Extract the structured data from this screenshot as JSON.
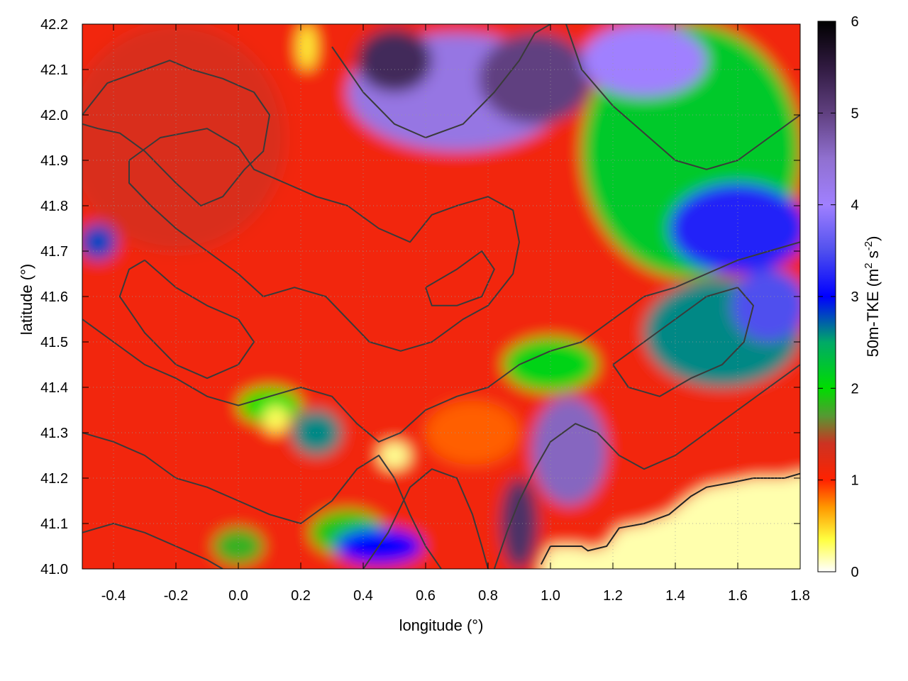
{
  "chart_data": {
    "type": "heatmap",
    "title": "",
    "xlabel": "longitude (°)",
    "ylabel": "latitude (°)",
    "colorbar_label_parts": [
      "50m-TKE (m",
      "2",
      " s",
      "-2",
      ")"
    ],
    "xlim": [
      -0.5,
      1.8
    ],
    "ylim": [
      41.0,
      42.2
    ],
    "x_ticks": [
      -0.4,
      -0.2,
      0.0,
      0.2,
      0.4,
      0.6,
      0.8,
      1.0,
      1.2,
      1.4,
      1.6,
      1.8
    ],
    "x_tick_labels": [
      "-0.4",
      "-0.2",
      "0.0",
      "0.2",
      "0.4",
      "0.6",
      "0.8",
      "1.0",
      "1.2",
      "1.4",
      "1.6",
      "1.8"
    ],
    "y_ticks": [
      41.0,
      41.1,
      41.2,
      41.3,
      41.4,
      41.5,
      41.6,
      41.7,
      41.8,
      41.9,
      42.0,
      42.1,
      42.2
    ],
    "y_tick_labels": [
      "41.0",
      "41.1",
      "41.2",
      "41.3",
      "41.4",
      "41.5",
      "41.6",
      "41.7",
      "41.8",
      "41.9",
      "42.0",
      "42.1",
      "42.2"
    ],
    "colorbar_range": [
      0,
      6
    ],
    "colorbar_ticks": [
      0,
      1,
      2,
      3,
      4,
      5,
      6
    ],
    "colorbar_tick_labels": [
      "0",
      "1",
      "2",
      "3",
      "4",
      "5",
      "6"
    ],
    "colorscale": [
      {
        "value": 0.0,
        "color": "#ffffff"
      },
      {
        "value": 0.35,
        "color": "#ffff40"
      },
      {
        "value": 0.7,
        "color": "#ff9900"
      },
      {
        "value": 1.0,
        "color": "#ff2200"
      },
      {
        "value": 1.4,
        "color": "#cc3322"
      },
      {
        "value": 1.7,
        "color": "#559933"
      },
      {
        "value": 2.0,
        "color": "#00dd00"
      },
      {
        "value": 2.5,
        "color": "#00aa66"
      },
      {
        "value": 3.0,
        "color": "#0000ff"
      },
      {
        "value": 3.5,
        "color": "#5050ee"
      },
      {
        "value": 4.0,
        "color": "#a080ff"
      },
      {
        "value": 4.5,
        "color": "#9070d0"
      },
      {
        "value": 5.0,
        "color": "#604080"
      },
      {
        "value": 5.5,
        "color": "#301a40"
      },
      {
        "value": 6.0,
        "color": "#000000"
      }
    ],
    "regions": [
      {
        "kind": "background",
        "value": 1.1
      },
      {
        "kind": "blob",
        "lon": -0.2,
        "lat": 41.95,
        "rx": 0.35,
        "ry": 0.25,
        "value": 1.3
      },
      {
        "kind": "blob",
        "lon": 0.7,
        "lat": 42.05,
        "rx": 0.35,
        "ry": 0.13,
        "value": 4.3
      },
      {
        "kind": "blob",
        "lon": 0.5,
        "lat": 42.12,
        "rx": 0.12,
        "ry": 0.07,
        "value": 5.3
      },
      {
        "kind": "blob",
        "lon": 0.95,
        "lat": 42.08,
        "rx": 0.18,
        "ry": 0.1,
        "value": 5.0
      },
      {
        "kind": "blob",
        "lon": 1.45,
        "lat": 41.92,
        "rx": 0.35,
        "ry": 0.28,
        "value": 2.2
      },
      {
        "kind": "blob",
        "lon": 1.3,
        "lat": 42.12,
        "rx": 0.2,
        "ry": 0.08,
        "value": 4.0
      },
      {
        "kind": "blob",
        "lon": 1.6,
        "lat": 41.75,
        "rx": 0.22,
        "ry": 0.1,
        "value": 3.2
      },
      {
        "kind": "blob",
        "lon": 1.55,
        "lat": 41.52,
        "rx": 0.25,
        "ry": 0.12,
        "value": 2.6
      },
      {
        "kind": "blob",
        "lon": 1.7,
        "lat": 41.58,
        "rx": 0.12,
        "ry": 0.08,
        "value": 3.5
      },
      {
        "kind": "blob",
        "lon": 1.06,
        "lat": 41.26,
        "rx": 0.12,
        "ry": 0.12,
        "value": 4.6
      },
      {
        "kind": "blob",
        "lon": 0.9,
        "lat": 41.1,
        "rx": 0.06,
        "ry": 0.1,
        "value": 5.2
      },
      {
        "kind": "blob",
        "lon": 0.35,
        "lat": 41.08,
        "rx": 0.12,
        "ry": 0.05,
        "value": 1.9
      },
      {
        "kind": "blob",
        "lon": 0.45,
        "lat": 41.05,
        "rx": 0.14,
        "ry": 0.04,
        "value": 3.0
      },
      {
        "kind": "blob",
        "lon": 0.0,
        "lat": 41.05,
        "rx": 0.08,
        "ry": 0.04,
        "value": 1.8
      },
      {
        "kind": "blob",
        "lon": 0.1,
        "lat": 41.36,
        "rx": 0.1,
        "ry": 0.04,
        "value": 2.0
      },
      {
        "kind": "blob",
        "lon": 0.25,
        "lat": 41.3,
        "rx": 0.08,
        "ry": 0.05,
        "value": 2.6
      },
      {
        "kind": "blob",
        "lon": -0.45,
        "lat": 41.72,
        "rx": 0.06,
        "ry": 0.04,
        "value": 2.8
      },
      {
        "kind": "blob",
        "lon": 0.5,
        "lat": 41.25,
        "rx": 0.05,
        "ry": 0.03,
        "value": 0.2
      },
      {
        "kind": "blob",
        "lon": 0.12,
        "lat": 41.33,
        "rx": 0.04,
        "ry": 0.03,
        "value": 0.3
      },
      {
        "kind": "blob",
        "lon": 0.22,
        "lat": 42.15,
        "rx": 0.03,
        "ry": 0.05,
        "value": 0.4
      },
      {
        "kind": "blob",
        "lon": 0.75,
        "lat": 41.3,
        "rx": 0.15,
        "ry": 0.07,
        "value": 0.85
      },
      {
        "kind": "blob",
        "lon": 1.0,
        "lat": 41.45,
        "rx": 0.15,
        "ry": 0.06,
        "value": 2.1
      },
      {
        "kind": "coast",
        "value": 0.15
      }
    ],
    "coastline": [
      [
        0.97,
        41.01
      ],
      [
        1.0,
        41.05
      ],
      [
        1.1,
        41.05
      ],
      [
        1.12,
        41.04
      ],
      [
        1.18,
        41.05
      ],
      [
        1.22,
        41.09
      ],
      [
        1.3,
        41.1
      ],
      [
        1.38,
        41.12
      ],
      [
        1.45,
        41.16
      ],
      [
        1.5,
        41.18
      ],
      [
        1.58,
        41.19
      ],
      [
        1.65,
        41.2
      ],
      [
        1.75,
        41.2
      ],
      [
        1.8,
        41.21
      ]
    ],
    "contours": [
      [
        [
          -0.5,
          42.0
        ],
        [
          -0.42,
          42.07
        ],
        [
          -0.3,
          42.1
        ],
        [
          -0.22,
          42.12
        ],
        [
          -0.15,
          42.1
        ],
        [
          -0.05,
          42.08
        ],
        [
          0.05,
          42.05
        ],
        [
          0.1,
          42.0
        ],
        [
          0.08,
          41.92
        ],
        [
          0.02,
          41.88
        ],
        [
          -0.05,
          41.82
        ],
        [
          -0.12,
          41.8
        ],
        [
          -0.2,
          41.85
        ],
        [
          -0.3,
          41.92
        ],
        [
          -0.38,
          41.96
        ],
        [
          -0.45,
          41.97
        ],
        [
          -0.5,
          41.98
        ]
      ],
      [
        [
          -0.35,
          41.9
        ],
        [
          -0.25,
          41.95
        ],
        [
          -0.1,
          41.97
        ],
        [
          0.0,
          41.93
        ],
        [
          0.05,
          41.88
        ],
        [
          0.15,
          41.85
        ],
        [
          0.25,
          41.82
        ],
        [
          0.35,
          41.8
        ],
        [
          0.45,
          41.75
        ],
        [
          0.55,
          41.72
        ],
        [
          0.62,
          41.78
        ],
        [
          0.7,
          41.8
        ],
        [
          0.8,
          41.82
        ],
        [
          0.88,
          41.79
        ],
        [
          0.9,
          41.72
        ],
        [
          0.88,
          41.65
        ],
        [
          0.8,
          41.58
        ],
        [
          0.72,
          41.55
        ],
        [
          0.62,
          41.5
        ],
        [
          0.52,
          41.48
        ],
        [
          0.42,
          41.5
        ],
        [
          0.35,
          41.55
        ],
        [
          0.28,
          41.6
        ],
        [
          0.18,
          41.62
        ],
        [
          0.08,
          41.6
        ],
        [
          0.0,
          41.65
        ],
        [
          -0.1,
          41.7
        ],
        [
          -0.2,
          41.75
        ],
        [
          -0.28,
          41.8
        ],
        [
          -0.35,
          41.85
        ],
        [
          -0.35,
          41.9
        ]
      ],
      [
        [
          -0.5,
          41.55
        ],
        [
          -0.4,
          41.5
        ],
        [
          -0.3,
          41.45
        ],
        [
          -0.2,
          41.42
        ],
        [
          -0.1,
          41.38
        ],
        [
          0.0,
          41.36
        ],
        [
          0.1,
          41.38
        ],
        [
          0.2,
          41.4
        ],
        [
          0.3,
          41.38
        ],
        [
          0.38,
          41.32
        ],
        [
          0.45,
          41.28
        ],
        [
          0.52,
          41.3
        ],
        [
          0.6,
          41.35
        ],
        [
          0.7,
          41.38
        ],
        [
          0.8,
          41.4
        ],
        [
          0.9,
          41.45
        ],
        [
          1.0,
          41.48
        ],
        [
          1.1,
          41.5
        ],
        [
          1.2,
          41.55
        ],
        [
          1.3,
          41.6
        ],
        [
          1.4,
          41.62
        ],
        [
          1.5,
          41.65
        ],
        [
          1.6,
          41.68
        ],
        [
          1.7,
          41.7
        ],
        [
          1.8,
          41.72
        ]
      ],
      [
        [
          -0.5,
          41.3
        ],
        [
          -0.4,
          41.28
        ],
        [
          -0.3,
          41.25
        ],
        [
          -0.2,
          41.2
        ],
        [
          -0.1,
          41.18
        ],
        [
          0.0,
          41.15
        ],
        [
          0.1,
          41.12
        ],
        [
          0.2,
          41.1
        ],
        [
          0.3,
          41.15
        ],
        [
          0.38,
          41.22
        ],
        [
          0.45,
          41.25
        ],
        [
          0.5,
          41.2
        ],
        [
          0.55,
          41.12
        ],
        [
          0.6,
          41.05
        ],
        [
          0.65,
          41.0
        ]
      ],
      [
        [
          0.4,
          41.0
        ],
        [
          0.48,
          41.08
        ],
        [
          0.55,
          41.18
        ],
        [
          0.62,
          41.22
        ],
        [
          0.7,
          41.2
        ],
        [
          0.75,
          41.12
        ],
        [
          0.78,
          41.05
        ],
        [
          0.8,
          41.0
        ]
      ],
      [
        [
          0.82,
          41.0
        ],
        [
          0.86,
          41.08
        ],
        [
          0.9,
          41.15
        ],
        [
          0.95,
          41.22
        ],
        [
          1.0,
          41.28
        ],
        [
          1.08,
          41.32
        ],
        [
          1.15,
          41.3
        ],
        [
          1.22,
          41.25
        ],
        [
          1.3,
          41.22
        ],
        [
          1.4,
          41.25
        ],
        [
          1.5,
          41.3
        ],
        [
          1.6,
          41.35
        ],
        [
          1.7,
          41.4
        ],
        [
          1.8,
          41.45
        ]
      ],
      [
        [
          -0.3,
          41.68
        ],
        [
          -0.2,
          41.62
        ],
        [
          -0.1,
          41.58
        ],
        [
          0.0,
          41.55
        ],
        [
          0.05,
          41.5
        ],
        [
          0.0,
          41.45
        ],
        [
          -0.1,
          41.42
        ],
        [
          -0.2,
          41.45
        ],
        [
          -0.3,
          41.52
        ],
        [
          -0.38,
          41.6
        ],
        [
          -0.35,
          41.66
        ],
        [
          -0.3,
          41.68
        ]
      ],
      [
        [
          0.3,
          42.15
        ],
        [
          0.4,
          42.05
        ],
        [
          0.5,
          41.98
        ],
        [
          0.6,
          41.95
        ],
        [
          0.72,
          41.98
        ],
        [
          0.82,
          42.05
        ],
        [
          0.9,
          42.12
        ],
        [
          0.95,
          42.18
        ],
        [
          1.0,
          42.2
        ]
      ],
      [
        [
          1.05,
          42.2
        ],
        [
          1.1,
          42.1
        ],
        [
          1.2,
          42.02
        ],
        [
          1.3,
          41.96
        ],
        [
          1.4,
          41.9
        ],
        [
          1.5,
          41.88
        ],
        [
          1.6,
          41.9
        ],
        [
          1.7,
          41.95
        ],
        [
          1.8,
          42.0
        ]
      ],
      [
        [
          0.6,
          41.62
        ],
        [
          0.7,
          41.66
        ],
        [
          0.78,
          41.7
        ],
        [
          0.82,
          41.66
        ],
        [
          0.78,
          41.6
        ],
        [
          0.7,
          41.58
        ],
        [
          0.62,
          41.58
        ],
        [
          0.6,
          41.62
        ]
      ],
      [
        [
          1.2,
          41.45
        ],
        [
          1.25,
          41.4
        ],
        [
          1.35,
          41.38
        ],
        [
          1.45,
          41.42
        ],
        [
          1.55,
          41.45
        ],
        [
          1.62,
          41.5
        ],
        [
          1.65,
          41.58
        ],
        [
          1.6,
          41.62
        ],
        [
          1.5,
          41.6
        ],
        [
          1.4,
          41.55
        ],
        [
          1.3,
          41.5
        ],
        [
          1.2,
          41.45
        ]
      ],
      [
        [
          -0.5,
          41.08
        ],
        [
          -0.4,
          41.1
        ],
        [
          -0.3,
          41.08
        ],
        [
          -0.2,
          41.05
        ],
        [
          -0.1,
          41.02
        ],
        [
          -0.05,
          41.0
        ]
      ]
    ]
  }
}
